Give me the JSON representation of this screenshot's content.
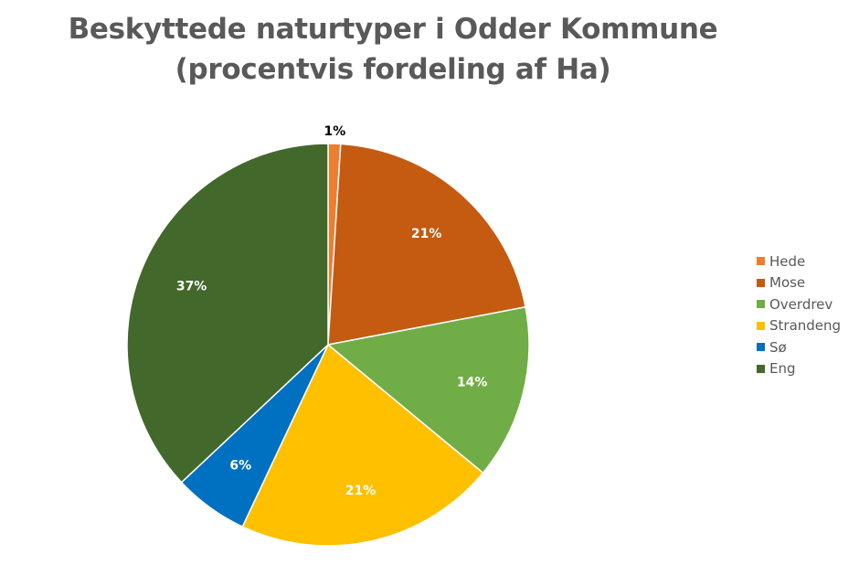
{
  "chart_data": {
    "type": "pie",
    "title_lines": [
      "Beskyttede naturtyper i Odder Kommune",
      "(procentvis fordeling af Ha)"
    ],
    "categories": [
      "Hede",
      "Mose",
      "Overdrev",
      "Strandeng",
      "Sø",
      "Eng"
    ],
    "values": [
      1,
      21,
      14,
      21,
      6,
      37
    ],
    "value_labels": [
      "1%",
      "21%",
      "14%",
      "21%",
      "6%",
      "37%"
    ],
    "colors": [
      "#ED7D31",
      "#C55A11",
      "#70AD47",
      "#FFC000",
      "#0070C0",
      "#43682B"
    ],
    "label_colors": [
      "#000000",
      "#ffffff",
      "#ffffff",
      "#ffffff",
      "#ffffff",
      "#ffffff"
    ],
    "legend_position": "right"
  }
}
